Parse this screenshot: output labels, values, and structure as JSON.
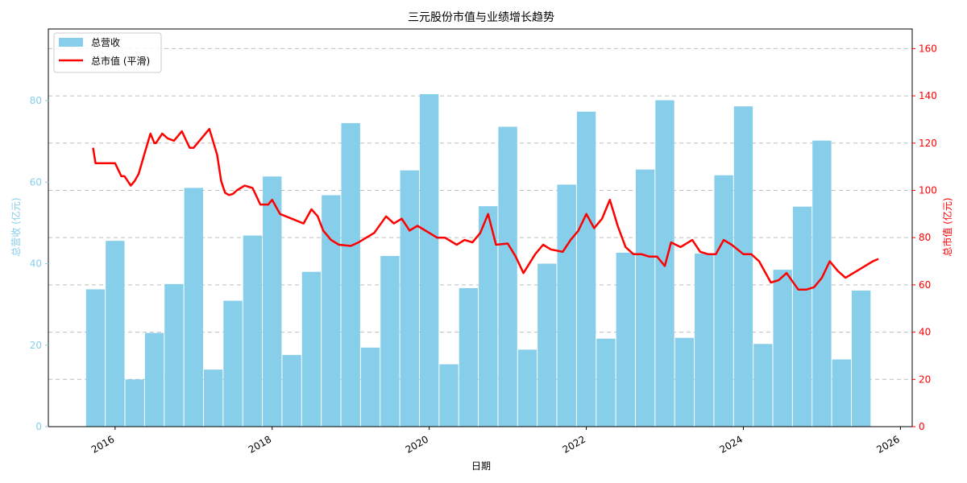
{
  "chart_data": {
    "type": "bar+line",
    "title": "三元股份市值与业绩增长趋势",
    "xlabel": "日期",
    "ylabel_left": "总营收 (亿元)",
    "ylabel_right": "总市值 (亿元)",
    "ylim_left": [
      0,
      97.6
    ],
    "ylim_right": [
      0,
      168.3
    ],
    "xlim": [
      2015.15,
      2026.15
    ],
    "x_ticks": [
      "2016",
      "2018",
      "2020",
      "2022",
      "2024",
      "2026"
    ],
    "y_ticks_left": [
      "0",
      "20",
      "40",
      "60",
      "80"
    ],
    "y_ticks_right": [
      "0",
      "20",
      "40",
      "60",
      "80",
      "100",
      "120",
      "140",
      "160"
    ],
    "grid": "horizontal dashed",
    "legend_position": "top-left",
    "colors": {
      "bar": "#87ceeb",
      "line": "#ff0000",
      "left_axis": "#87ceeb",
      "right_axis": "#ff0000"
    },
    "series": [
      {
        "name": "总营收",
        "type": "bar",
        "x": [
          2015.75,
          2016.0,
          2016.25,
          2016.5,
          2016.75,
          2017.0,
          2017.25,
          2017.5,
          2017.75,
          2018.0,
          2018.25,
          2018.5,
          2018.75,
          2019.0,
          2019.25,
          2019.5,
          2019.75,
          2020.0,
          2020.25,
          2020.5,
          2020.75,
          2021.0,
          2021.25,
          2021.5,
          2021.75,
          2022.0,
          2022.25,
          2022.5,
          2022.75,
          2023.0,
          2023.25,
          2023.5,
          2023.75,
          2024.0,
          2024.25,
          2024.5,
          2024.75,
          2025.0,
          2025.25,
          2025.5
        ],
        "values": [
          33.7,
          45.6,
          11.6,
          23.0,
          35.0,
          58.6,
          14.0,
          30.9,
          46.9,
          61.4,
          17.6,
          38.0,
          56.8,
          74.5,
          19.4,
          41.9,
          62.9,
          81.6,
          15.3,
          34.0,
          54.1,
          73.6,
          18.9,
          40.0,
          59.4,
          77.3,
          21.6,
          42.7,
          63.1,
          80.1,
          21.8,
          42.5,
          61.7,
          78.6,
          20.3,
          38.5,
          54.0,
          70.2,
          16.5,
          33.4
        ]
      },
      {
        "name": "总市值 (平滑)",
        "type": "line",
        "x": [
          2015.72,
          2015.75,
          2016.0,
          2016.08,
          2016.12,
          2016.2,
          2016.25,
          2016.3,
          2016.37,
          2016.45,
          2016.5,
          2016.52,
          2016.6,
          2016.67,
          2016.75,
          2016.85,
          2016.95,
          2017.0,
          2017.1,
          2017.2,
          2017.3,
          2017.35,
          2017.4,
          2017.45,
          2017.5,
          2017.55,
          2017.65,
          2017.75,
          2017.85,
          2017.95,
          2018.0,
          2018.1,
          2018.25,
          2018.4,
          2018.5,
          2018.58,
          2018.65,
          2018.75,
          2018.85,
          2019.0,
          2019.1,
          2019.3,
          2019.45,
          2019.55,
          2019.65,
          2019.75,
          2019.85,
          2020.0,
          2020.1,
          2020.2,
          2020.35,
          2020.45,
          2020.55,
          2020.65,
          2020.75,
          2020.85,
          2021.0,
          2021.1,
          2021.2,
          2021.35,
          2021.45,
          2021.55,
          2021.7,
          2021.8,
          2021.9,
          2022.0,
          2022.1,
          2022.2,
          2022.3,
          2022.4,
          2022.5,
          2022.6,
          2022.7,
          2022.8,
          2022.9,
          2023.0,
          2023.08,
          2023.2,
          2023.35,
          2023.45,
          2023.55,
          2023.65,
          2023.75,
          2023.85,
          2024.0,
          2024.1,
          2024.2,
          2024.35,
          2024.45,
          2024.55,
          2024.7,
          2024.8,
          2024.9,
          2025.0,
          2025.1,
          2025.2,
          2025.3,
          2025.45,
          2025.55,
          2025.65,
          2025.72
        ],
        "values": [
          118,
          111.5,
          111.5,
          106,
          106,
          102,
          104,
          107,
          115,
          124,
          120,
          120,
          124,
          122,
          121,
          125,
          118,
          118,
          122,
          126,
          115,
          104,
          99,
          98,
          98.5,
          100,
          102,
          101,
          94,
          94,
          96,
          90,
          88,
          86,
          92,
          89,
          83,
          79,
          77,
          76.5,
          78,
          82,
          89,
          86,
          88,
          83,
          85,
          82,
          80,
          80,
          77,
          79,
          78,
          82,
          90,
          77,
          77.5,
          72,
          65,
          73,
          77,
          75,
          74,
          79,
          83,
          90,
          84,
          88,
          96,
          85,
          76,
          73,
          73,
          72,
          72,
          68,
          78,
          76,
          79,
          74,
          73,
          73,
          79,
          77,
          73,
          73,
          70,
          61,
          62,
          65,
          58,
          58,
          59,
          63,
          70,
          66,
          63,
          66,
          68,
          70,
          71
        ]
      }
    ]
  }
}
